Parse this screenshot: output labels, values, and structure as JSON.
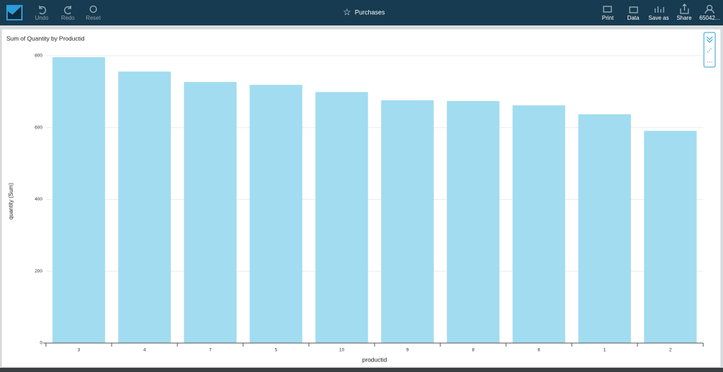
{
  "toolbar": {
    "left": [
      "Undo",
      "Redo",
      "Reset"
    ],
    "title": "Purchases",
    "right": [
      "Print",
      "Data",
      "Save as",
      "Share",
      "65042..."
    ]
  },
  "chart_data": {
    "type": "bar",
    "title": "Sum of Quantity by Productid",
    "x_label": "productid",
    "y_label": "quantity (Sum)",
    "categories": [
      "3",
      "4",
      "7",
      "5",
      "10",
      "9",
      "8",
      "6",
      "1",
      "2"
    ],
    "values": [
      796,
      756,
      727,
      719,
      699,
      676,
      674,
      662,
      637,
      591
    ],
    "color": "#a1dcf0",
    "ylim": [
      0,
      800
    ],
    "yticks": [
      0,
      200,
      400,
      600,
      800
    ],
    "grid": true
  }
}
